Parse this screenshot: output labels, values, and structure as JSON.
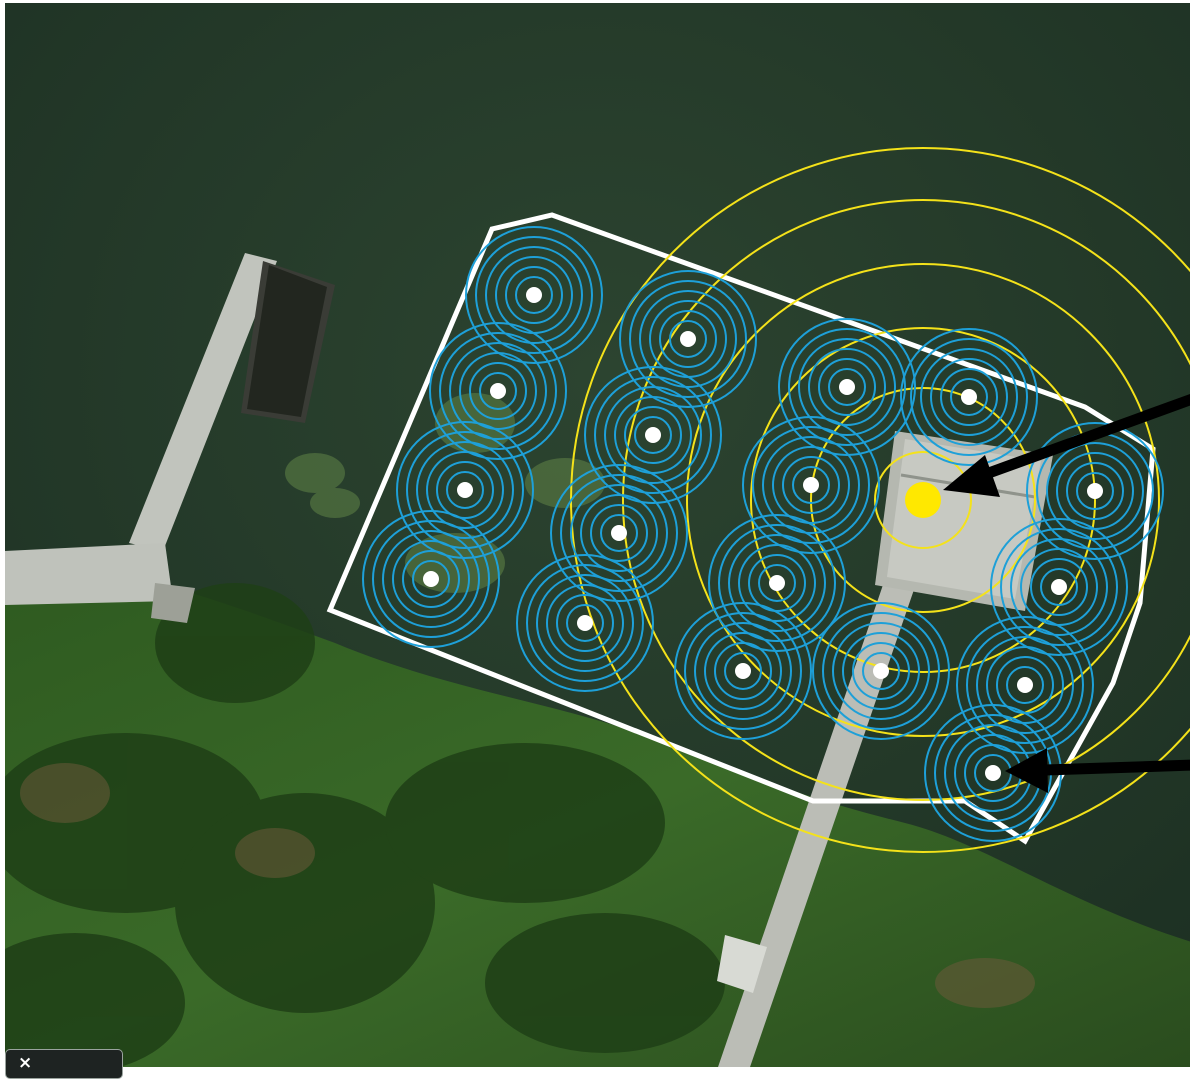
{
  "map": {
    "view": "satellite",
    "colors": {
      "water": "#243a2a",
      "vegetation": "#2f5a22",
      "dock": "#b9bcb7",
      "boundary": "#ffffff",
      "sensor_rings": "#1ea0d8",
      "sensor_dot": "#ffffff",
      "target_rings": "#f4e21a",
      "target_dot": "#ffe800",
      "arrow": "#000000"
    },
    "sensor_count": 20,
    "sensor_rings_per_point": 6,
    "target_rings": 5,
    "arrow_count": 2
  },
  "controls": {
    "close_label": "×",
    "close_icon": "close-icon"
  }
}
